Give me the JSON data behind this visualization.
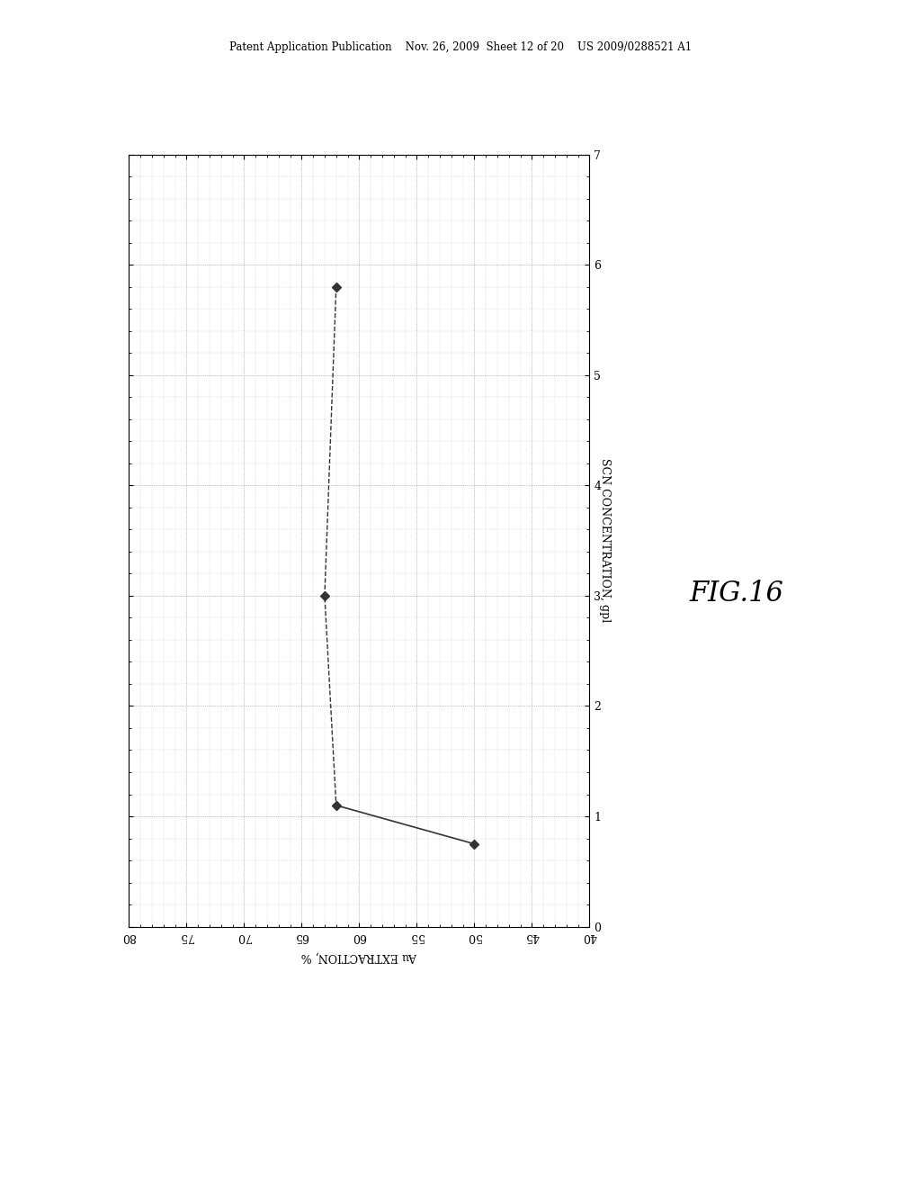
{
  "title": "",
  "xlabel": "Au EXTRACTION, %",
  "ylabel": "SCN CONCENTRATION, gpl",
  "fig_label": "FIG.16",
  "x_data": [
    62,
    63,
    62,
    50
  ],
  "y_data": [
    5.8,
    3.0,
    1.1,
    0.75
  ],
  "xlim": [
    80,
    40
  ],
  "ylim": [
    0,
    7
  ],
  "xticks": [
    80,
    75,
    70,
    65,
    60,
    55,
    50,
    45,
    40
  ],
  "yticks": [
    0,
    1,
    2,
    3,
    4,
    5,
    6,
    7
  ],
  "marker_color": "#333333",
  "line_color": "#333333",
  "background_color": "#ffffff",
  "header_text": "Patent Application Publication    Nov. 26, 2009  Sheet 12 of 20    US 2009/0288521 A1"
}
